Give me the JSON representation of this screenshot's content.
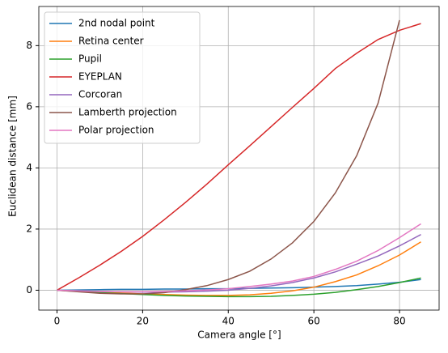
{
  "chart_data": {
    "type": "line",
    "x_label": "Camera angle [°]",
    "y_label": "Euclidean distance [mm]",
    "x": [
      0,
      5,
      10,
      15,
      20,
      25,
      30,
      35,
      40,
      45,
      50,
      55,
      60,
      65,
      70,
      75,
      80,
      85
    ],
    "series": [
      {
        "name": "2nd nodal point",
        "color": "#1f77b4",
        "values": [
          0,
          0.01,
          0.02,
          0.03,
          0.03,
          0.04,
          0.04,
          0.05,
          0.05,
          0.06,
          0.07,
          0.08,
          0.1,
          0.12,
          0.15,
          0.2,
          0.26,
          0.35
        ]
      },
      {
        "name": "Retina center",
        "color": "#ff7f0e",
        "values": [
          0,
          -0.03,
          -0.06,
          -0.09,
          -0.12,
          -0.14,
          -0.16,
          -0.17,
          -0.17,
          -0.15,
          -0.1,
          -0.02,
          0.1,
          0.28,
          0.5,
          0.8,
          1.15,
          1.58
        ]
      },
      {
        "name": "Pupil",
        "color": "#2ca02c",
        "values": [
          0,
          -0.04,
          -0.08,
          -0.11,
          -0.14,
          -0.17,
          -0.19,
          -0.2,
          -0.21,
          -0.21,
          -0.2,
          -0.17,
          -0.13,
          -0.07,
          0.02,
          0.12,
          0.25,
          0.4
        ]
      },
      {
        "name": "EYEPLAN",
        "color": "#d62728",
        "values": [
          0,
          0.4,
          0.82,
          1.27,
          1.76,
          2.3,
          2.87,
          3.47,
          4.1,
          4.72,
          5.35,
          5.98,
          6.6,
          7.25,
          7.75,
          8.2,
          8.5,
          8.72
        ]
      },
      {
        "name": "Corcoran",
        "color": "#9467bd",
        "values": [
          0,
          -0.02,
          -0.04,
          -0.05,
          -0.06,
          -0.06,
          -0.05,
          -0.03,
          0.0,
          0.06,
          0.14,
          0.25,
          0.4,
          0.6,
          0.85,
          1.12,
          1.45,
          1.82
        ]
      },
      {
        "name": "Lamberth projection",
        "color": "#8c564b",
        "values": [
          0,
          -0.05,
          -0.1,
          -0.12,
          -0.12,
          -0.08,
          0.02,
          0.15,
          0.35,
          0.62,
          1.02,
          1.55,
          2.25,
          3.18,
          4.4,
          6.12,
          8.83,
          null
        ]
      },
      {
        "name": "Polar projection",
        "color": "#e377c2",
        "values": [
          0,
          -0.02,
          -0.04,
          -0.05,
          -0.05,
          -0.04,
          -0.02,
          0.01,
          0.05,
          0.12,
          0.2,
          0.3,
          0.45,
          0.68,
          0.95,
          1.3,
          1.72,
          2.17
        ]
      }
    ],
    "xlim": [
      -4.25,
      89.25
    ],
    "ylim": [
      -0.65,
      9.28
    ],
    "xticks": [
      0,
      20,
      40,
      60,
      80
    ],
    "yticks": [
      0,
      2,
      4,
      6,
      8
    ],
    "grid": true,
    "legend": "upper-left"
  }
}
